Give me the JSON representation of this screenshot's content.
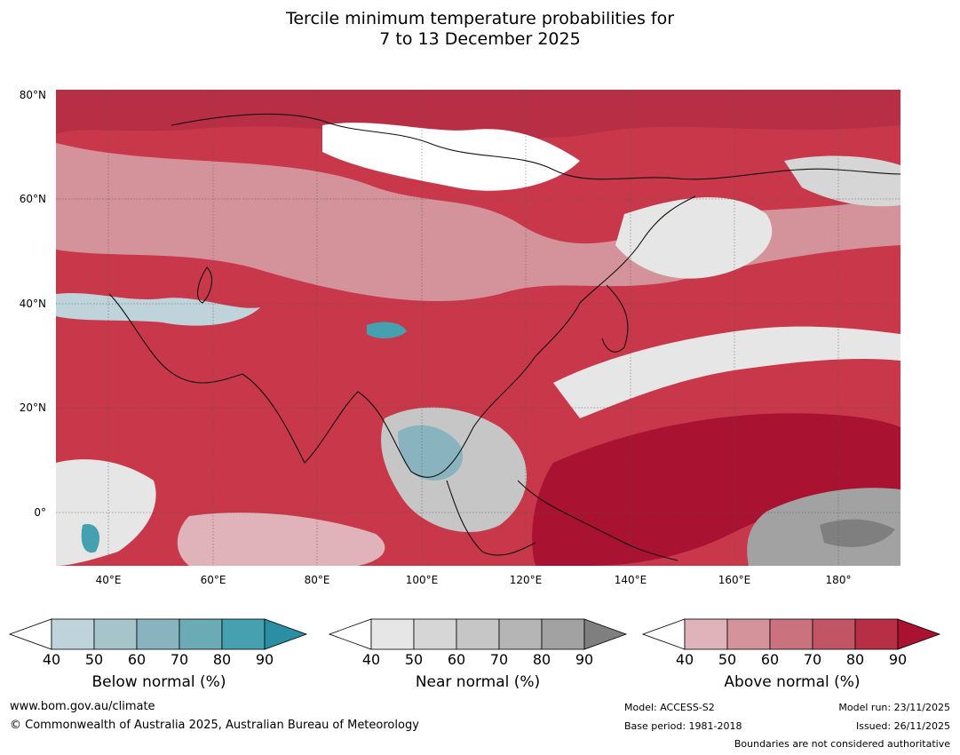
{
  "title": {
    "line1": "Tercile minimum temperature probabilities for",
    "line2": "7 to 13 December 2025"
  },
  "map": {
    "lat_labels": [
      "80°N",
      "60°N",
      "40°N",
      "20°N",
      "0°"
    ],
    "lon_labels": [
      "40°E",
      "60°E",
      "80°E",
      "100°E",
      "120°E",
      "140°E",
      "160°E",
      "180°"
    ],
    "background_color": "#c8384a"
  },
  "legends": [
    {
      "id": "below",
      "label": "Below normal (%)",
      "ticks": [
        "40",
        "50",
        "60",
        "70",
        "80",
        "90"
      ],
      "colors": [
        "#ffffff",
        "#bfd3da",
        "#a6c5cb",
        "#89b4bf",
        "#6aabb6",
        "#45a0b0",
        "#2a8fa3"
      ]
    },
    {
      "id": "near",
      "label": "Near normal (%)",
      "ticks": [
        "40",
        "50",
        "60",
        "70",
        "80",
        "90"
      ],
      "colors": [
        "#ffffff",
        "#e6e6e6",
        "#d6d6d6",
        "#c6c6c6",
        "#b5b5b5",
        "#a2a2a2",
        "#7f7f7f"
      ]
    },
    {
      "id": "above",
      "label": "Above normal (%)",
      "ticks": [
        "40",
        "50",
        "60",
        "70",
        "80",
        "90"
      ],
      "colors": [
        "#ffffff",
        "#e0b2b9",
        "#d4939b",
        "#ca727e",
        "#c15563",
        "#b82f45",
        "#a91230"
      ]
    }
  ],
  "footer": {
    "website": "www.bom.gov.au/climate",
    "copyright": "© Commonwealth of Australia 2025, Australian Bureau of Meteorology",
    "model": "Model: ACCESS-S2",
    "base_period": "Base period: 1981-2018",
    "model_run": "Model run: 23/11/2025",
    "issued": "Issued: 26/11/2025",
    "disclaimer": "Boundaries are not considered authoritative"
  }
}
